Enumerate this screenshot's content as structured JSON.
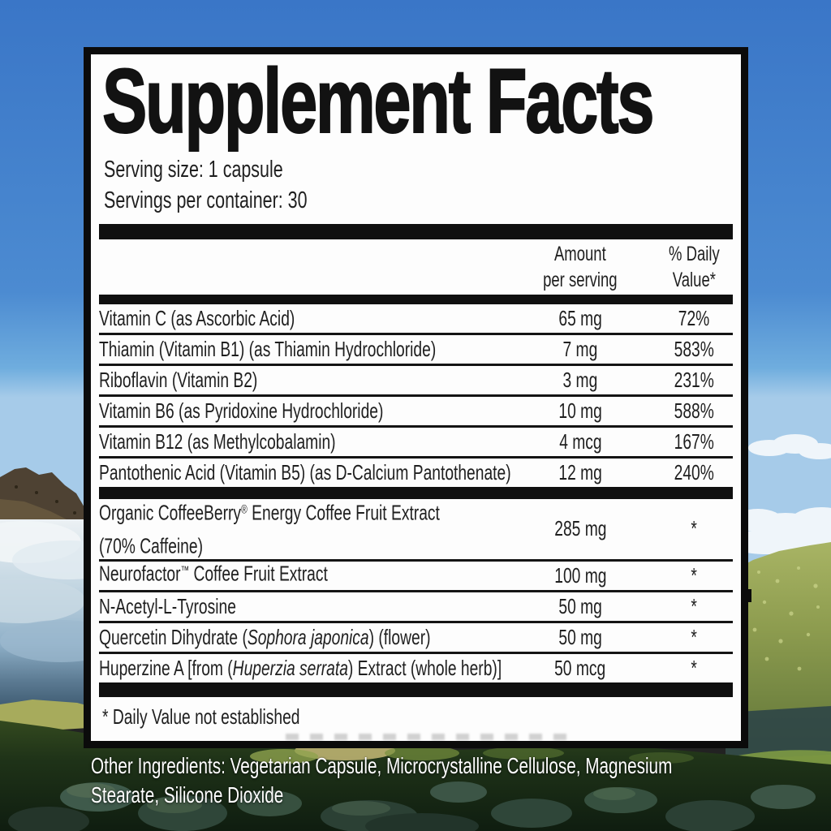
{
  "colors": {
    "panel_bg": "#fdfdfd",
    "panel_border_and_bars": "#0b0b0b",
    "panel_text": "#1f1f1f",
    "sky_blue": "#3a76c7",
    "hill_green": "#8d9c4f",
    "meadow_dark_green": "#1f3318",
    "caption_text": "#ffffff"
  },
  "panel": {
    "title": "Supplement Facts",
    "serving_size": "Serving size: 1 capsule",
    "servings_per_container": "Servings per container: 30",
    "header": {
      "amount_line1": "Amount",
      "amount_line2": "per serving",
      "dv_line1": "% Daily",
      "dv_line2": "Value*"
    },
    "rows": [
      {
        "name": [
          {
            "t": "Vitamin C (as Ascorbic Acid)"
          }
        ],
        "amount": "65 mg",
        "dv": "72%"
      },
      {
        "name": [
          {
            "t": "Thiamin (Vitamin B1) (as Thiamin Hydrochloride)"
          }
        ],
        "amount": "7 mg",
        "dv": "583%"
      },
      {
        "name": [
          {
            "t": "Riboflavin (Vitamin B2)"
          }
        ],
        "amount": "3 mg",
        "dv": "231%"
      },
      {
        "name": [
          {
            "t": "Vitamin B6 (as Pyridoxine Hydrochloride)"
          }
        ],
        "amount": "10 mg",
        "dv": "588%"
      },
      {
        "name": [
          {
            "t": "Vitamin B12 (as Methylcobalamin)"
          }
        ],
        "amount": "4 mcg",
        "dv": "167%"
      },
      {
        "name": [
          {
            "t": "Pantothenic Acid (Vitamin B5) (as D-Calcium Pantothenate)"
          }
        ],
        "amount": "12 mg",
        "dv": "240%",
        "nosep": true,
        "divider_after": true
      },
      {
        "name": [
          {
            "t": "Organic CoffeeBerry"
          },
          {
            "t": "®",
            "sup": true
          },
          {
            "t": " Energy Coffee Fruit Extract"
          },
          {
            "br": true
          },
          {
            "t": "(70% Caffeine)"
          }
        ],
        "amount": "285 mg",
        "dv": "*",
        "tall": true
      },
      {
        "name": [
          {
            "t": "Neurofactor"
          },
          {
            "t": "™",
            "sup": true
          },
          {
            "t": " Coffee Fruit Extract"
          }
        ],
        "amount": "100 mg",
        "dv": "*"
      },
      {
        "name": [
          {
            "t": "N-Acetyl-L-Tyrosine"
          }
        ],
        "amount": "50 mg",
        "dv": "*"
      },
      {
        "name": [
          {
            "t": "Quercetin Dihydrate ("
          },
          {
            "t": "Sophora japonica",
            "i": true
          },
          {
            "t": ") (flower)"
          }
        ],
        "amount": "50 mg",
        "dv": "*"
      },
      {
        "name": [
          {
            "t": "Huperzine A [from ("
          },
          {
            "t": "Huperzia serrata",
            "i": true
          },
          {
            "t": ") Extract (whole herb)]"
          }
        ],
        "amount": "50 mcg",
        "dv": "*",
        "nosep": true
      }
    ],
    "footnote": "* Daily Value not established"
  },
  "other_ingredients": {
    "line1": "Other Ingredients: Vegetarian Capsule, Microcrystalline Cellulose, Magnesium",
    "line2": "Stearate, Silicone Dioxide"
  }
}
